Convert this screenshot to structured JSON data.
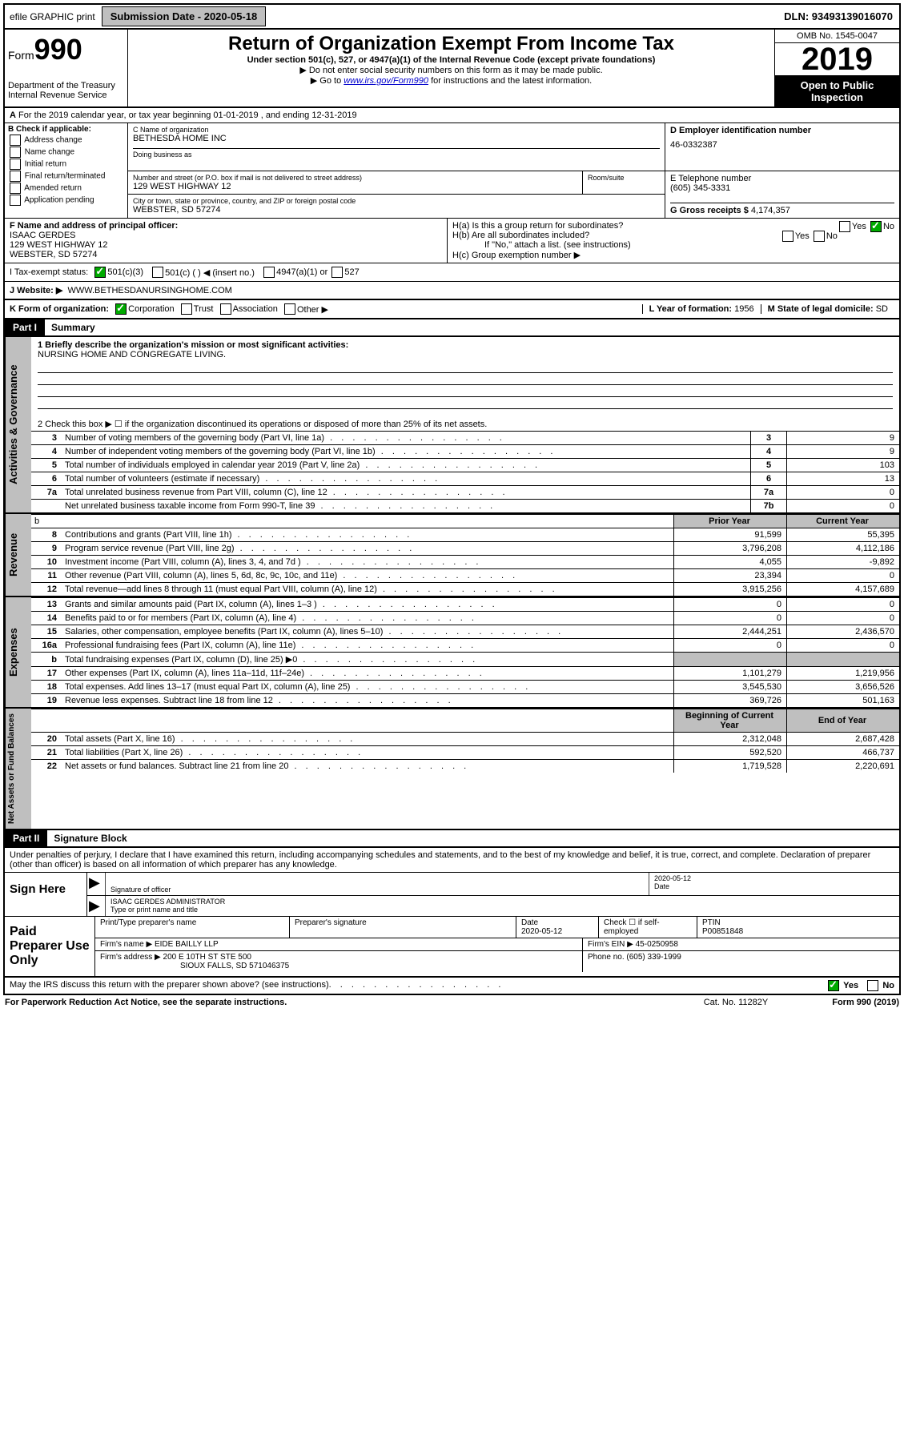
{
  "topbar": {
    "efile": "efile GRAPHIC print",
    "submission_label": "Submission Date - 2020-05-18",
    "dln": "DLN: 93493139016070"
  },
  "header": {
    "form_prefix": "Form",
    "form_number": "990",
    "dept": "Department of the Treasury",
    "irs": "Internal Revenue Service",
    "title": "Return of Organization Exempt From Income Tax",
    "subtitle": "Under section 501(c), 527, or 4947(a)(1) of the Internal Revenue Code (except private foundations)",
    "note1": "Do not enter social security numbers on this form as it may be made public.",
    "note2_a": "Go to ",
    "note2_link": "www.irs.gov/Form990",
    "note2_b": " for instructions and the latest information.",
    "omb": "OMB No. 1545-0047",
    "year": "2019",
    "open": "Open to Public Inspection"
  },
  "section_a": "For the 2019 calendar year, or tax year beginning 01-01-2019    , and ending 12-31-2019",
  "section_b": {
    "label": "B Check if applicable:",
    "opts": [
      "Address change",
      "Name change",
      "Initial return",
      "Final return/terminated",
      "Amended return",
      "Application pending"
    ]
  },
  "section_c": {
    "name_label": "C Name of organization",
    "name": "BETHESDA HOME INC",
    "dba_label": "Doing business as",
    "addr_label": "Number and street (or P.O. box if mail is not delivered to street address)",
    "addr": "129 WEST HIGHWAY 12",
    "room_label": "Room/suite",
    "city_label": "City or town, state or province, country, and ZIP or foreign postal code",
    "city": "WEBSTER, SD  57274"
  },
  "section_d": {
    "label": "D Employer identification number",
    "ein": "46-0332387"
  },
  "section_e": {
    "label": "E Telephone number",
    "phone": "(605) 345-3331"
  },
  "section_g": {
    "label": "G Gross receipts $",
    "value": "4,174,357"
  },
  "section_f": {
    "label": "F  Name and address of principal officer:",
    "name": "ISAAC GERDES",
    "addr1": "129 WEST HIGHWAY 12",
    "addr2": "WEBSTER, SD  57274"
  },
  "section_h": {
    "ha": "H(a)  Is this a group return for subordinates?",
    "hb": "H(b)  Are all subordinates included?",
    "hb_note": "If \"No,\" attach a list. (see instructions)",
    "hc": "H(c)  Group exemption number ▶"
  },
  "section_i": {
    "label": "I      Tax-exempt status:",
    "opts": [
      "501(c)(3)",
      "501(c) (   ) ◀ (insert no.)",
      "4947(a)(1) or",
      "527"
    ]
  },
  "section_j": {
    "label": "J     Website: ▶",
    "url": "WWW.BETHESDANURSINGHOME.COM"
  },
  "section_k": {
    "label": "K Form of organization:",
    "opts": [
      "Corporation",
      "Trust",
      "Association",
      "Other ▶"
    ],
    "l_label": "L Year of formation:",
    "l_val": "1956",
    "m_label": "M State of legal domicile:",
    "m_val": "SD"
  },
  "part1": {
    "label": "Part I",
    "title": "Summary",
    "line1_label": "1  Briefly describe the organization's mission or most significant activities:",
    "line1_val": "NURSING HOME AND CONGREGATE LIVING.",
    "line2": "2   Check this box ▶ ☐  if the organization discontinued its operations or disposed of more than 25% of its net assets."
  },
  "governance_rows": [
    {
      "n": "3",
      "text": "Number of voting members of the governing body (Part VI, line 1a)",
      "box": "3",
      "v": "9"
    },
    {
      "n": "4",
      "text": "Number of independent voting members of the governing body (Part VI, line 1b)",
      "box": "4",
      "v": "9"
    },
    {
      "n": "5",
      "text": "Total number of individuals employed in calendar year 2019 (Part V, line 2a)",
      "box": "5",
      "v": "103"
    },
    {
      "n": "6",
      "text": "Total number of volunteers (estimate if necessary)",
      "box": "6",
      "v": "13"
    },
    {
      "n": "7a",
      "text": "Total unrelated business revenue from Part VIII, column (C), line 12",
      "box": "7a",
      "v": "0"
    },
    {
      "n": "",
      "text": "Net unrelated business taxable income from Form 990-T, line 39",
      "box": "7b",
      "v": "0"
    }
  ],
  "two_col_headers": {
    "b": "b",
    "prior": "Prior Year",
    "current": "Current Year"
  },
  "revenue_rows": [
    {
      "n": "8",
      "text": "Contributions and grants (Part VIII, line 1h)",
      "p": "91,599",
      "c": "55,395"
    },
    {
      "n": "9",
      "text": "Program service revenue (Part VIII, line 2g)",
      "p": "3,796,208",
      "c": "4,112,186"
    },
    {
      "n": "10",
      "text": "Investment income (Part VIII, column (A), lines 3, 4, and 7d )",
      "p": "4,055",
      "c": "-9,892"
    },
    {
      "n": "11",
      "text": "Other revenue (Part VIII, column (A), lines 5, 6d, 8c, 9c, 10c, and 11e)",
      "p": "23,394",
      "c": "0"
    },
    {
      "n": "12",
      "text": "Total revenue—add lines 8 through 11 (must equal Part VIII, column (A), line 12)",
      "p": "3,915,256",
      "c": "4,157,689"
    }
  ],
  "expense_rows": [
    {
      "n": "13",
      "text": "Grants and similar amounts paid (Part IX, column (A), lines 1–3 )",
      "p": "0",
      "c": "0"
    },
    {
      "n": "14",
      "text": "Benefits paid to or for members (Part IX, column (A), line 4)",
      "p": "0",
      "c": "0"
    },
    {
      "n": "15",
      "text": "Salaries, other compensation, employee benefits (Part IX, column (A), lines 5–10)",
      "p": "2,444,251",
      "c": "2,436,570"
    },
    {
      "n": "16a",
      "text": "Professional fundraising fees (Part IX, column (A), line 11e)",
      "p": "0",
      "c": "0"
    },
    {
      "n": "b",
      "text": "Total fundraising expenses (Part IX, column (D), line 25) ▶0",
      "p": "",
      "c": ""
    },
    {
      "n": "17",
      "text": "Other expenses (Part IX, column (A), lines 11a–11d, 11f–24e)",
      "p": "1,101,279",
      "c": "1,219,956"
    },
    {
      "n": "18",
      "text": "Total expenses. Add lines 13–17 (must equal Part IX, column (A), line 25)",
      "p": "3,545,530",
      "c": "3,656,526"
    },
    {
      "n": "19",
      "text": "Revenue less expenses. Subtract line 18 from line 12",
      "p": "369,726",
      "c": "501,163"
    }
  ],
  "na_headers": {
    "begin": "Beginning of Current Year",
    "end": "End of Year"
  },
  "na_rows": [
    {
      "n": "20",
      "text": "Total assets (Part X, line 16)",
      "p": "2,312,048",
      "c": "2,687,428"
    },
    {
      "n": "21",
      "text": "Total liabilities (Part X, line 26)",
      "p": "592,520",
      "c": "466,737"
    },
    {
      "n": "22",
      "text": "Net assets or fund balances. Subtract line 21 from line 20",
      "p": "1,719,528",
      "c": "2,220,691"
    }
  ],
  "side_labels": {
    "ag": "Activities & Governance",
    "rev": "Revenue",
    "exp": "Expenses",
    "na": "Net Assets or Fund Balances"
  },
  "part2": {
    "label": "Part II",
    "title": "Signature Block",
    "declare": "Under penalties of perjury, I declare that I have examined this return, including accompanying schedules and statements, and to the best of my knowledge and belief, it is true, correct, and complete. Declaration of preparer (other than officer) is based on all information of which preparer has any knowledge."
  },
  "sign": {
    "label": "Sign Here",
    "sig_label": "Signature of officer",
    "date": "2020-05-12",
    "date_label": "Date",
    "name": "ISAAC GERDES  ADMINISTRATOR",
    "name_label": "Type or print name and title"
  },
  "preparer": {
    "label": "Paid Preparer Use Only",
    "h1": "Print/Type preparer's name",
    "h2": "Preparer's signature",
    "h3_label": "Date",
    "h3": "2020-05-12",
    "h4": "Check ☐ if self-employed",
    "h5_label": "PTIN",
    "h5": "P00851848",
    "firm_label": "Firm's name     ▶",
    "firm": "EIDE BAILLY LLP",
    "ein_label": "Firm's EIN ▶",
    "ein": "45-0250958",
    "addr_label": "Firm's address ▶",
    "addr1": "200 E 10TH ST STE 500",
    "addr2": "SIOUX FALLS, SD  571046375",
    "phone_label": "Phone no.",
    "phone": "(605) 339-1999"
  },
  "footer": {
    "discuss": "May the IRS discuss this return with the preparer shown above? (see instructions)",
    "yes": "Yes",
    "no": "No",
    "paperwork": "For Paperwork Reduction Act Notice, see the separate instructions.",
    "cat": "Cat. No. 11282Y",
    "form": "Form 990 (2019)"
  }
}
